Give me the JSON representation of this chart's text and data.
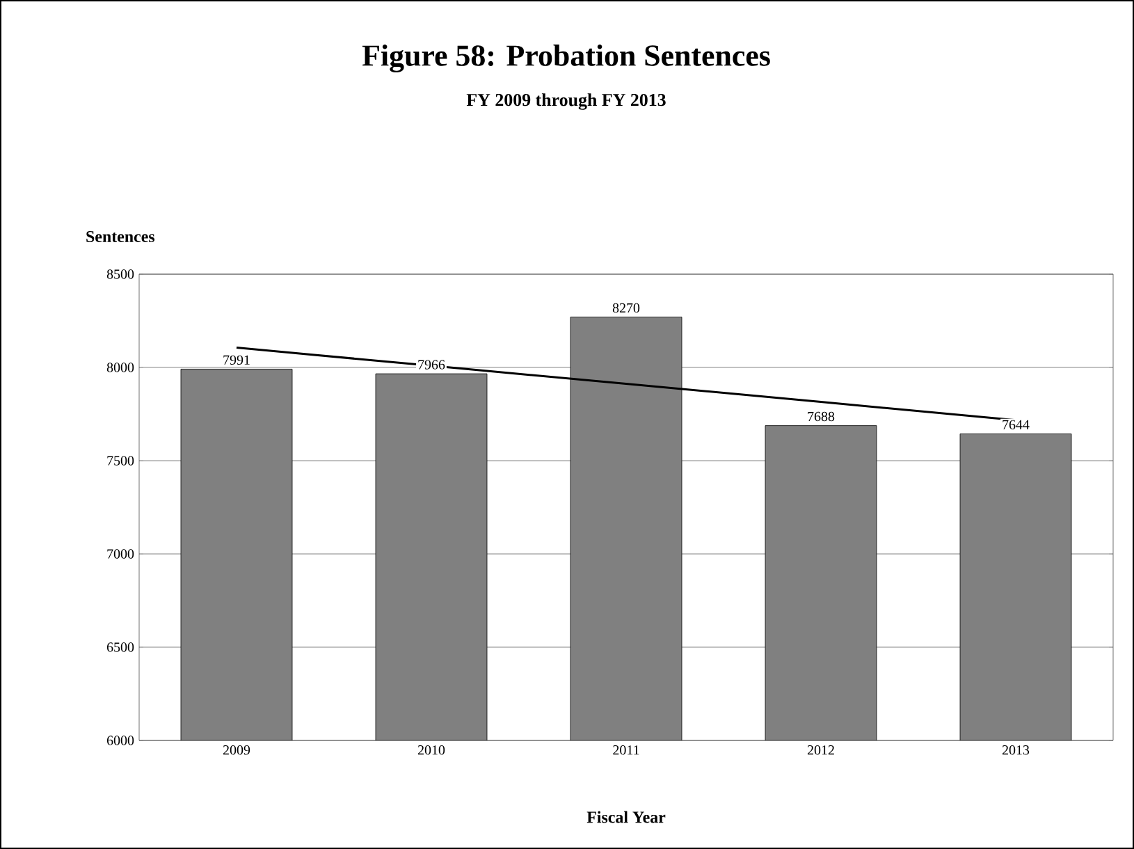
{
  "chart_data": {
    "type": "bar",
    "title": "Figure 58: Probation Sentences",
    "subtitle": "FY 2009 through FY 2013",
    "xlabel": "Fiscal Year",
    "ylabel": "Sentences",
    "categories": [
      "2009",
      "2010",
      "2011",
      "2012",
      "2013"
    ],
    "series": [
      {
        "color": "#808080",
        "values": [
          7991,
          7966,
          8270,
          7688,
          7644
        ],
        "value_labels": [
          "7991",
          "7966",
          "8270",
          "7688",
          "7644"
        ]
      },
      {
        "type": "line",
        "color": "#000000",
        "values": [
          8106,
          8009,
          7912,
          7815,
          7717
        ]
      }
    ],
    "ylim": [
      6000,
      8500
    ],
    "yticks": [
      6000,
      6500,
      7000,
      7500,
      8000,
      8500
    ],
    "grid": "y",
    "legend": false,
    "marker": "none"
  }
}
